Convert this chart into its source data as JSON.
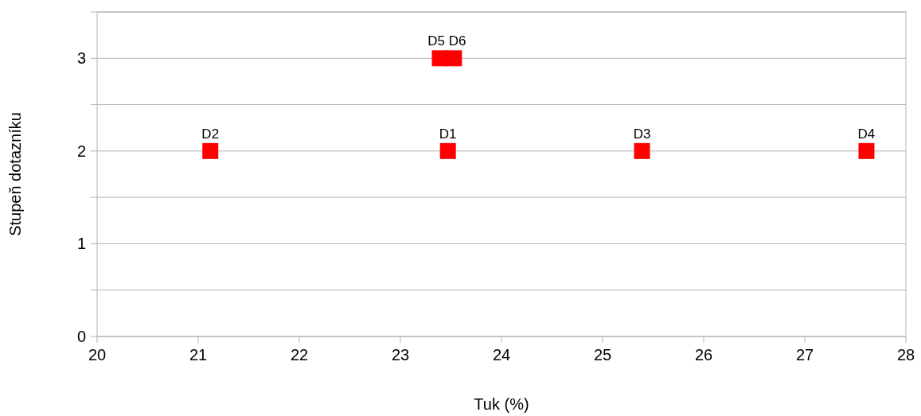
{
  "chart_data": {
    "type": "scatter",
    "xlabel": "Tuk (%)",
    "ylabel": "Stupeň dotazníku",
    "x": [
      23.47,
      21.12,
      25.39,
      27.61,
      23.39,
      23.53
    ],
    "series": [
      {
        "color": "#ff0000",
        "values": [
          2,
          2,
          2,
          2,
          3,
          3
        ]
      }
    ],
    "xlim": [
      20,
      28
    ],
    "xticks": [
      20,
      21,
      22,
      23,
      24,
      25,
      26,
      27,
      28
    ],
    "ylim": [
      0,
      3.5
    ],
    "yticks": [
      0,
      {
        "value": 0.5,
        "label": null
      },
      1,
      {
        "value": 1.5,
        "label": null
      },
      2,
      {
        "value": 2.5,
        "label": null
      },
      3,
      {
        "value": 3.5,
        "label": null
      }
    ],
    "grid": "y",
    "marker": "square",
    "annotations": [
      {
        "text": "D1",
        "x": 23.47,
        "y": 2
      },
      {
        "text": "D2",
        "x": 21.12,
        "y": 2
      },
      {
        "text": "D3",
        "x": 25.39,
        "y": 2
      },
      {
        "text": "D4",
        "x": 27.61,
        "y": 2
      },
      {
        "text": "D5 D6",
        "x": 23.46,
        "y": 3
      }
    ]
  }
}
